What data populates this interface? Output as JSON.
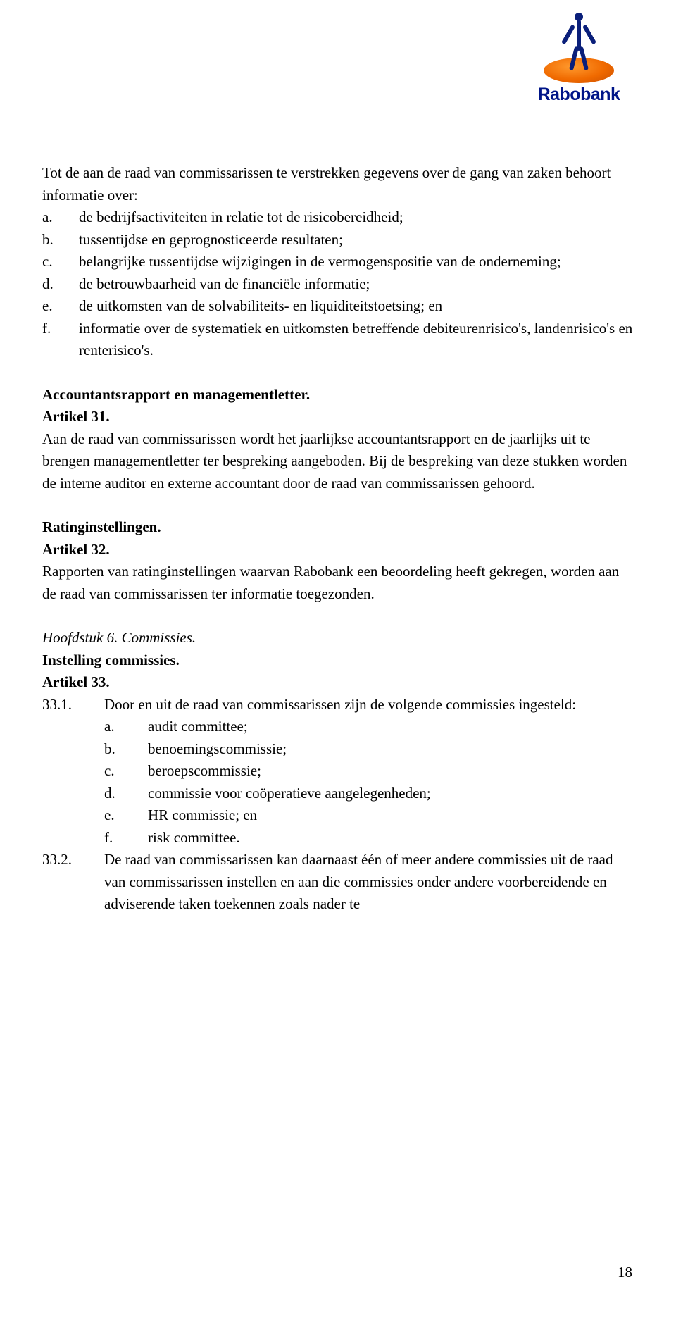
{
  "logo": {
    "brand": "Rabobank"
  },
  "intro": "Tot de aan de raad van commissarissen te verstrekken gegevens over de gang van zaken behoort informatie over:",
  "intro_list": [
    {
      "marker": "a.",
      "text": "de bedrijfsactiviteiten in relatie tot de risicobereidheid;"
    },
    {
      "marker": "b.",
      "text": "tussentijdse en geprognosticeerde resultaten;"
    },
    {
      "marker": "c.",
      "text": "belangrijke tussentijdse wijzigingen in de vermogenspositie van de onderneming;"
    },
    {
      "marker": "d.",
      "text": "de betrouwbaarheid van de financiële informatie;"
    },
    {
      "marker": "e.",
      "text": "de uitkomsten van de solvabiliteits- en liquiditeitstoetsing; en"
    },
    {
      "marker": "f.",
      "text": "informatie over de systematiek en uitkomsten betreffende debiteurenrisico's, landenrisico's en renterisico's."
    }
  ],
  "sec1": {
    "heading": "Accountantsrapport en managementletter.",
    "article": "Artikel 31.",
    "body": "Aan de raad van commissarissen wordt het jaarlijkse accountantsrapport en de jaarlijks uit te brengen managementletter ter bespreking aangeboden. Bij de bespreking van deze stukken worden de interne auditor en externe accountant door de raad van commissarissen gehoord."
  },
  "sec2": {
    "heading": "Ratinginstellingen.",
    "article": "Artikel 32.",
    "body": "Rapporten van ratinginstellingen waarvan Rabobank een beoordeling heeft gekregen, worden aan de raad van commissarissen ter informatie toegezonden."
  },
  "chapter": "Hoofdstuk 6. Commissies.",
  "sec3": {
    "heading": "Instelling commissies.",
    "article": "Artikel 33.",
    "item1": {
      "marker": "33.1.",
      "text": "Door en uit de raad van commissarissen zijn de volgende commissies ingesteld:",
      "sublist": [
        {
          "marker": "a.",
          "text": "audit committee;"
        },
        {
          "marker": "b.",
          "text": "benoemingscommissie;"
        },
        {
          "marker": "c.",
          "text": "beroepscommissie;"
        },
        {
          "marker": "d.",
          "text": "commissie voor coöperatieve aangelegenheden;"
        },
        {
          "marker": "e.",
          "text": "HR commissie; en"
        },
        {
          "marker": "f.",
          "text": "risk committee."
        }
      ]
    },
    "item2": {
      "marker": "33.2.",
      "text": "De raad van commissarissen kan daarnaast één of meer andere commissies uit de raad van commissarissen instellen en aan die commissies onder andere voorbereidende en adviserende taken toekennen zoals nader te"
    }
  },
  "page_number": "18"
}
